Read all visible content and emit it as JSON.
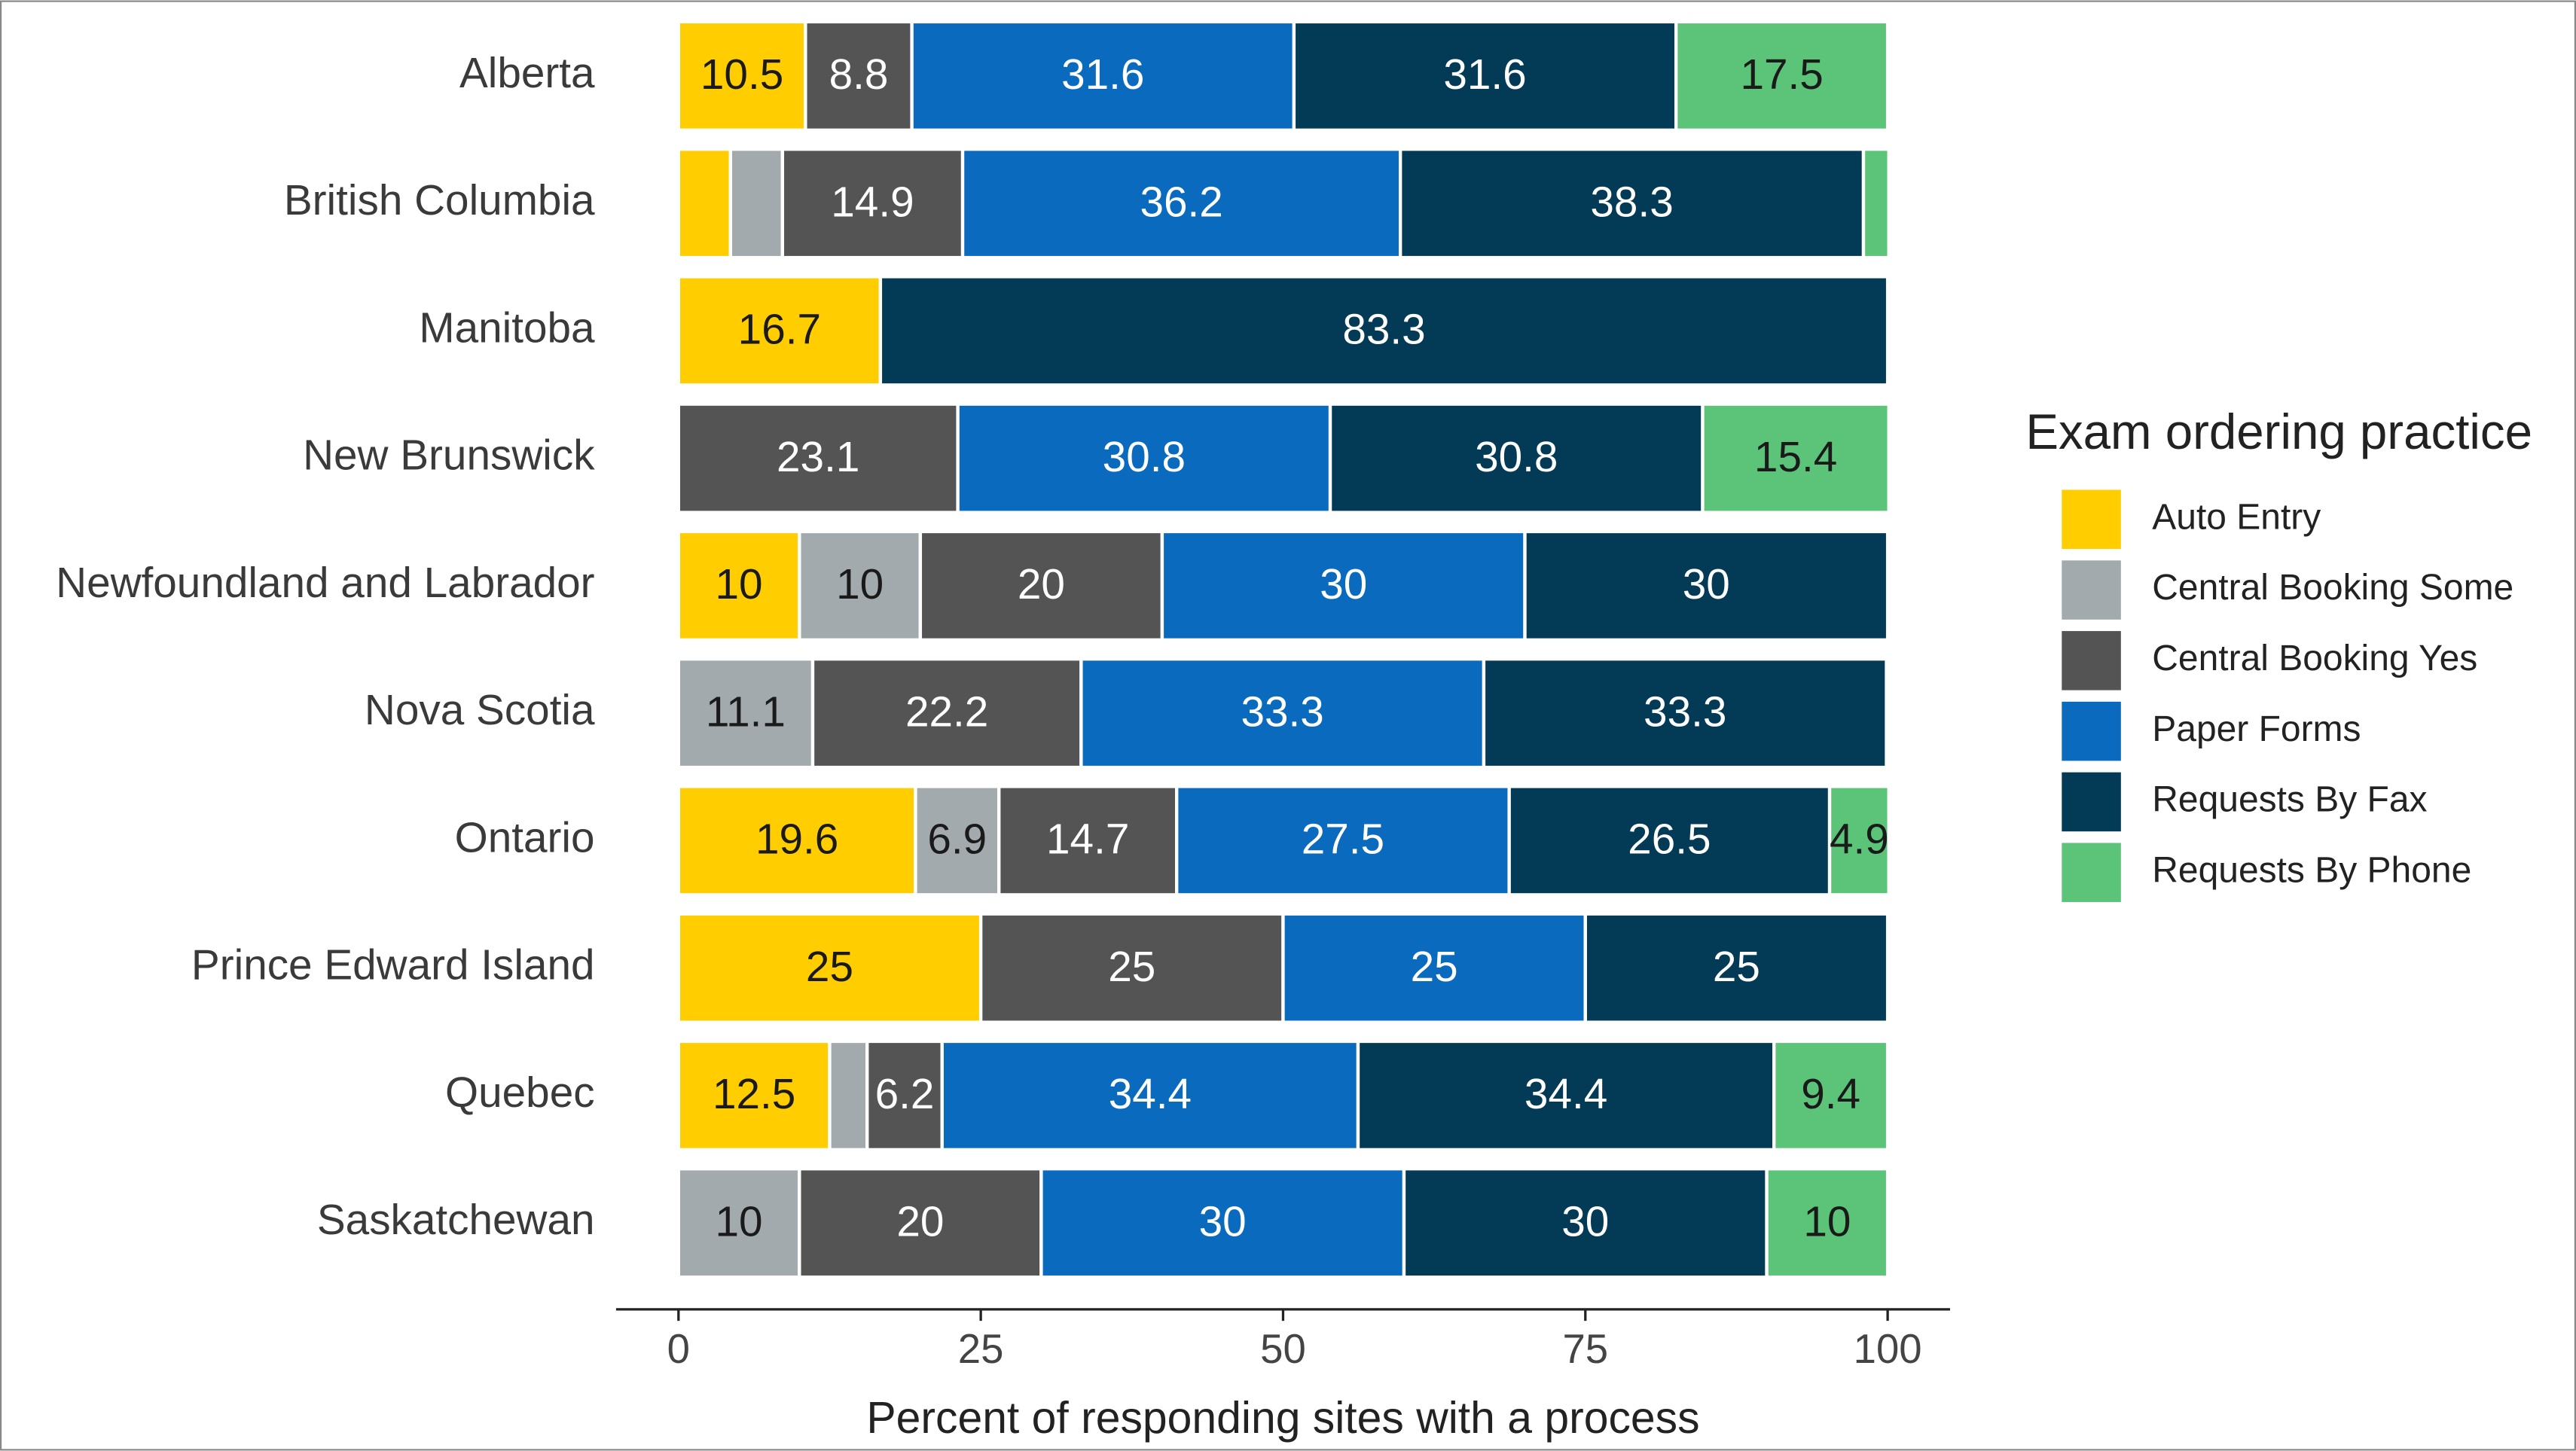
{
  "chart_data": {
    "type": "stacked_barh",
    "x_label": "Percent of responding sites with a process",
    "legend_title": "Exam ordering practice",
    "legend": "right",
    "categories": [
      "Alberta",
      "British Columbia",
      "Manitoba",
      "New Brunswick",
      "Newfoundland and Labrador",
      "Nova Scotia",
      "Ontario",
      "Prince Edward Island",
      "Quebec",
      "Saskatchewan"
    ],
    "series": [
      {
        "name": "Auto Entry",
        "color": "#FFCD00",
        "values": [
          10.5,
          4.3,
          16.7,
          null,
          10,
          null,
          19.6,
          25,
          12.5,
          null
        ]
      },
      {
        "name": "Central Booking Some",
        "color": "#A2AAAD",
        "values": [
          null,
          4.3,
          null,
          null,
          10,
          11.1,
          6.9,
          null,
          3.1,
          10
        ]
      },
      {
        "name": "Central Booking Yes",
        "color": "#545454",
        "values": [
          8.8,
          14.9,
          null,
          23.1,
          20,
          22.2,
          14.7,
          25,
          6.2,
          20
        ]
      },
      {
        "name": "Paper Forms",
        "color": "#0A6ABD",
        "values": [
          31.6,
          36.2,
          null,
          30.8,
          30,
          33.3,
          27.5,
          25,
          34.4,
          30
        ]
      },
      {
        "name": "Requests By Fax",
        "color": "#033A55",
        "values": [
          31.6,
          38.3,
          83.3,
          30.8,
          30,
          33.3,
          26.5,
          25,
          34.4,
          30
        ]
      },
      {
        "name": "Requests By Phone",
        "color": "#5BC478",
        "values": [
          17.5,
          2.1,
          null,
          15.4,
          null,
          null,
          4.9,
          null,
          9.4,
          10
        ]
      }
    ],
    "xlim": [
      0,
      100
    ],
    "xticks": [
      0,
      25,
      50,
      75,
      100
    ]
  }
}
